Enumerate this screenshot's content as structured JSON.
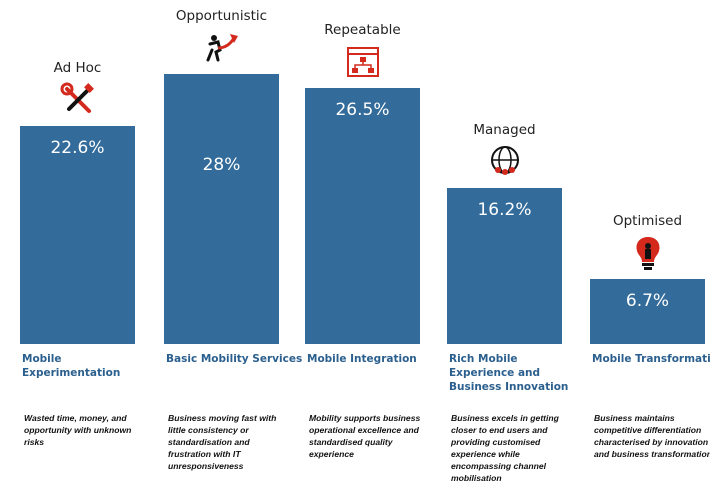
{
  "chart_data": {
    "type": "bar",
    "categories": [
      "Mobile Experimentation",
      "Basic Mobility Services",
      "Mobile Integration",
      "Rich Mobile Experience and Business Innovation",
      "Mobile Transformation"
    ],
    "values": [
      22.6,
      28,
      26.5,
      16.2,
      6.7
    ],
    "value_labels": [
      "22.6%",
      "28%",
      "26.5%",
      "16.2%",
      "6.7%"
    ],
    "stages": [
      "Ad Hoc",
      "Opportunistic",
      "Repeatable",
      "Managed",
      "Optimised"
    ],
    "descriptions": [
      "Wasted time, money, and opportunity with unknown risks",
      "Business moving fast with little consistency or standardisation and frustration with IT unresponsiveness",
      "Mobility supports business operational excellence and standardised quality experience",
      "Business excels in getting closer to end users and providing customised experience while encompassing channel mobilisation",
      "Business maintains competitive differentiation characterised by innovation and business transformation"
    ],
    "icons": [
      "tools-icon",
      "growth-arrow-icon",
      "process-flow-icon",
      "global-network-icon",
      "lightbulb-icon"
    ],
    "bar_color": "#336B9A",
    "icon_color": "#D42A1E",
    "ylim": [
      0,
      28
    ]
  }
}
